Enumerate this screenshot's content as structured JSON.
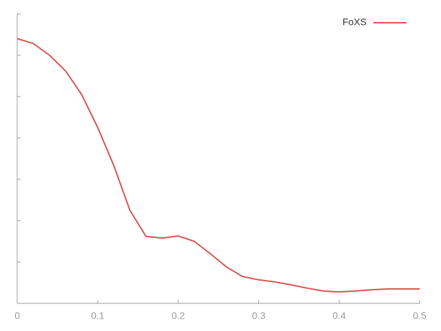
{
  "chart_data": {
    "type": "line",
    "x": [
      0,
      0.02,
      0.04,
      0.06,
      0.08,
      0.1,
      0.12,
      0.14,
      0.16,
      0.18,
      0.2,
      0.22,
      0.24,
      0.26,
      0.28,
      0.3,
      0.32,
      0.34,
      0.36,
      0.38,
      0.4,
      0.42,
      0.44,
      0.46,
      0.48,
      0.5
    ],
    "series": [
      {
        "name": "FoXS",
        "color": "#d9534f",
        "values": [
          6.4,
          6.28,
          6.0,
          5.62,
          5.05,
          4.25,
          3.33,
          2.25,
          1.62,
          1.58,
          1.63,
          1.5,
          1.2,
          0.88,
          0.65,
          0.57,
          0.52,
          0.45,
          0.37,
          0.3,
          0.28,
          0.3,
          0.33,
          0.35,
          0.35,
          0.35
        ]
      }
    ],
    "xlim": [
      0,
      0.5
    ],
    "xticks": [
      0,
      0.1,
      0.2,
      0.3,
      0.4,
      0.5
    ],
    "ylim": [
      0,
      7
    ],
    "yticks": [
      0,
      1,
      2,
      3,
      4,
      5,
      6,
      7
    ],
    "legend": "top-right"
  }
}
